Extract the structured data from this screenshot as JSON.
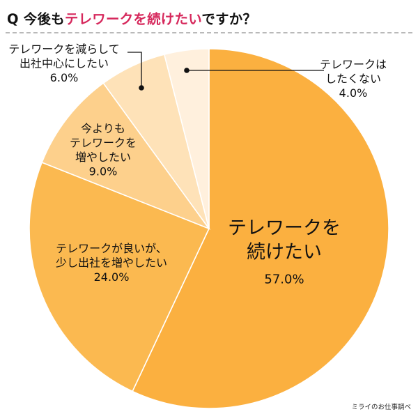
{
  "title": {
    "q_mark": "Q",
    "prefix": "今後も",
    "highlight": "テレワークを続けたい",
    "suffix": "ですか？",
    "highlight_color": "#d6285c"
  },
  "source": "ミライのお仕事調べ",
  "chart_data": {
    "type": "pie",
    "title": "今後もテレワークを続けたいですか？",
    "start_angle": "12 o'clock",
    "direction": "clockwise",
    "slices": [
      {
        "label": "テレワークを続けたい",
        "label_lines": [
          "テレワークを",
          "続けたい"
        ],
        "pct_text": "57.0%",
        "value": 57.0,
        "color": "#fbb040"
      },
      {
        "label": "テレワークが良いが、少し出社を増やしたい",
        "label_lines": [
          "テレワークが良いが、",
          "少し出社を増やしたい"
        ],
        "pct_text": "24.0%",
        "value": 24.0,
        "color": "#fbb950"
      },
      {
        "label": "今よりもテレワークを増やしたい",
        "label_lines": [
          "今よりも",
          "テレワークを",
          "増やしたい"
        ],
        "pct_text": "9.0%",
        "value": 9.0,
        "color": "#fdd08c"
      },
      {
        "label": "テレワークを減らして出社中心にしたい",
        "label_lines": [
          "テレワークを減らして",
          "出社中心にしたい"
        ],
        "pct_text": "6.0%",
        "value": 6.0,
        "color": "#fee2b8"
      },
      {
        "label": "テレワークはしたくない",
        "label_lines": [
          "テレワークは",
          "したくない"
        ],
        "pct_text": "4.0%",
        "value": 4.0,
        "color": "#fff0dd"
      }
    ]
  }
}
